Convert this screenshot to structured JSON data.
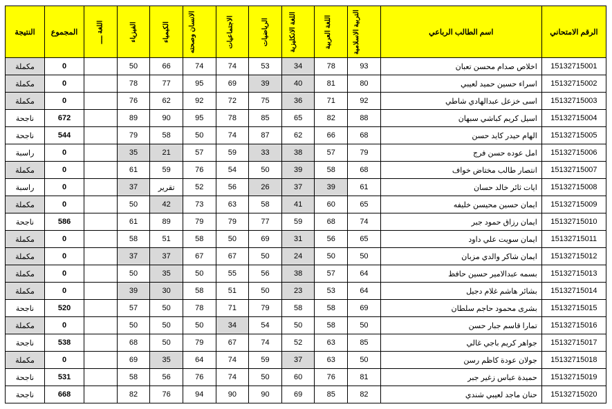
{
  "headers": {
    "id": "الرقم الامتحاني",
    "name": "اسم الطالب الرباعي",
    "subj": [
      "التربية الاسلامية",
      "اللغة العربية",
      "اللغة الانكليزية",
      "الرياضيات",
      "الاجتماعيات",
      "الانسان وصحته",
      "الكيمياء",
      "الفيزياء",
      "اللغة ــــ"
    ],
    "total": "المجموع",
    "result": "النتيجة"
  },
  "rows": [
    {
      "id": "15132715001",
      "name": "اخلاص صدام محسن تعبان",
      "s": [
        93,
        78,
        34,
        53,
        74,
        74,
        66,
        50,
        ""
      ],
      "sh": [
        0,
        0,
        1,
        0,
        0,
        0,
        0,
        0,
        0
      ],
      "tot": 0,
      "res": "مكملة",
      "rsh": 1
    },
    {
      "id": "15132715002",
      "name": "اسراء حسين حميد لعيبي",
      "s": [
        80,
        81,
        40,
        39,
        69,
        95,
        77,
        78,
        ""
      ],
      "sh": [
        0,
        0,
        1,
        1,
        0,
        0,
        0,
        0,
        0
      ],
      "tot": 0,
      "res": "مكملة",
      "rsh": 1
    },
    {
      "id": "15132715003",
      "name": "اسى خزعل عبدالهادي شاطي",
      "s": [
        92,
        71,
        36,
        75,
        72,
        92,
        62,
        76,
        ""
      ],
      "sh": [
        0,
        0,
        1,
        0,
        0,
        0,
        0,
        0,
        0
      ],
      "tot": 0,
      "res": "مكملة",
      "rsh": 1
    },
    {
      "id": "15132715004",
      "name": "اسيل كريم كباشي سبهان",
      "s": [
        88,
        82,
        65,
        85,
        78,
        95,
        90,
        89,
        ""
      ],
      "sh": [
        0,
        0,
        0,
        0,
        0,
        0,
        0,
        0,
        0
      ],
      "tot": 672,
      "res": "ناجحة",
      "rsh": 0
    },
    {
      "id": "15132715005",
      "name": "الهام حيدر كايد حسن",
      "s": [
        68,
        66,
        62,
        87,
        74,
        50,
        58,
        79,
        ""
      ],
      "sh": [
        0,
        0,
        0,
        0,
        0,
        0,
        0,
        0,
        0
      ],
      "tot": 544,
      "res": "ناجحة",
      "rsh": 0
    },
    {
      "id": "15132715006",
      "name": "امل عوده حسن فرج",
      "s": [
        79,
        57,
        38,
        33,
        59,
        57,
        21,
        35,
        ""
      ],
      "sh": [
        0,
        0,
        1,
        1,
        0,
        0,
        1,
        1,
        0
      ],
      "tot": 0,
      "res": "راسبة",
      "rsh": 0
    },
    {
      "id": "15132715007",
      "name": "انتصار طالب مختاض خواف",
      "s": [
        68,
        58,
        39,
        50,
        54,
        76,
        59,
        61,
        ""
      ],
      "sh": [
        0,
        0,
        1,
        0,
        0,
        0,
        0,
        0,
        0
      ],
      "tot": 0,
      "res": "مكملة",
      "rsh": 1
    },
    {
      "id": "15132715008",
      "name": "ايات ثائر خالد حسان",
      "s": [
        61,
        39,
        37,
        26,
        56,
        52,
        "تقرير",
        37,
        ""
      ],
      "sh": [
        0,
        1,
        1,
        1,
        0,
        0,
        0,
        1,
        0
      ],
      "tot": 0,
      "res": "راسبة",
      "rsh": 0
    },
    {
      "id": "15132715009",
      "name": "ايمان حسين محيسن خليفه",
      "s": [
        65,
        60,
        41,
        58,
        63,
        73,
        42,
        50,
        ""
      ],
      "sh": [
        0,
        0,
        1,
        0,
        0,
        0,
        1,
        0,
        0
      ],
      "tot": 0,
      "res": "مكملة",
      "rsh": 1
    },
    {
      "id": "15132715010",
      "name": "ايمان رزاق حمود جبر",
      "s": [
        74,
        68,
        59,
        77,
        79,
        79,
        89,
        61,
        ""
      ],
      "sh": [
        0,
        0,
        0,
        0,
        0,
        0,
        0,
        0,
        0
      ],
      "tot": 586,
      "res": "ناجحة",
      "rsh": 0
    },
    {
      "id": "15132715011",
      "name": "ايمان سويت علي داود",
      "s": [
        65,
        56,
        31,
        69,
        50,
        58,
        51,
        58,
        ""
      ],
      "sh": [
        0,
        0,
        1,
        0,
        0,
        0,
        0,
        0,
        0
      ],
      "tot": 0,
      "res": "مكملة",
      "rsh": 1
    },
    {
      "id": "15132715012",
      "name": "ايمان شاكر والدي مزبان",
      "s": [
        50,
        50,
        24,
        50,
        67,
        67,
        37,
        37,
        ""
      ],
      "sh": [
        0,
        0,
        1,
        0,
        0,
        0,
        1,
        1,
        0
      ],
      "tot": 0,
      "res": "مكملة",
      "rsh": 1
    },
    {
      "id": "15132715013",
      "name": "بسمه عبدالامير حسين حافظ",
      "s": [
        64,
        57,
        38,
        56,
        55,
        50,
        35,
        50,
        ""
      ],
      "sh": [
        0,
        0,
        1,
        0,
        0,
        0,
        1,
        0,
        0
      ],
      "tot": 0,
      "res": "مكملة",
      "rsh": 1
    },
    {
      "id": "15132715014",
      "name": "بشائر هاشم غلام دجيل",
      "s": [
        64,
        53,
        23,
        50,
        51,
        58,
        30,
        39,
        ""
      ],
      "sh": [
        0,
        0,
        1,
        0,
        0,
        0,
        1,
        1,
        0
      ],
      "tot": 0,
      "res": "مكملة",
      "rsh": 1
    },
    {
      "id": "15132715015",
      "name": "بشرى محمود حاجم سلطان",
      "s": [
        69,
        58,
        58,
        79,
        71,
        78,
        50,
        57,
        ""
      ],
      "sh": [
        0,
        0,
        0,
        0,
        0,
        0,
        0,
        0,
        0
      ],
      "tot": 520,
      "res": "ناجحة",
      "rsh": 0
    },
    {
      "id": "15132715016",
      "name": "تمارا قاسم جبار حسن",
      "s": [
        50,
        58,
        50,
        54,
        34,
        50,
        50,
        50,
        ""
      ],
      "sh": [
        0,
        0,
        0,
        0,
        1,
        0,
        0,
        0,
        0
      ],
      "tot": 0,
      "res": "مكملة",
      "rsh": 1
    },
    {
      "id": "15132715017",
      "name": "جواهر كريم باجي غالي",
      "s": [
        85,
        63,
        52,
        74,
        67,
        79,
        50,
        68,
        ""
      ],
      "sh": [
        0,
        0,
        0,
        0,
        0,
        0,
        0,
        0,
        0
      ],
      "tot": 538,
      "res": "ناجحة",
      "rsh": 0
    },
    {
      "id": "15132715018",
      "name": "جولان عودة كاظم رسن",
      "s": [
        50,
        63,
        37,
        59,
        74,
        64,
        35,
        69,
        ""
      ],
      "sh": [
        0,
        0,
        1,
        0,
        0,
        0,
        1,
        0,
        0
      ],
      "tot": 0,
      "res": "مكملة",
      "rsh": 1
    },
    {
      "id": "15132715019",
      "name": "حميدة عباس زغير جبر",
      "s": [
        81,
        76,
        60,
        50,
        74,
        76,
        56,
        58,
        ""
      ],
      "sh": [
        0,
        0,
        0,
        0,
        0,
        0,
        0,
        0,
        0
      ],
      "tot": 531,
      "res": "ناجحة",
      "rsh": 0
    },
    {
      "id": "15132715020",
      "name": "حنان ماجد لعيبي شندي",
      "s": [
        82,
        85,
        69,
        90,
        90,
        94,
        76,
        82,
        ""
      ],
      "sh": [
        0,
        0,
        0,
        0,
        0,
        0,
        0,
        0,
        0
      ],
      "tot": 668,
      "res": "ناجحة",
      "rsh": 0
    }
  ]
}
